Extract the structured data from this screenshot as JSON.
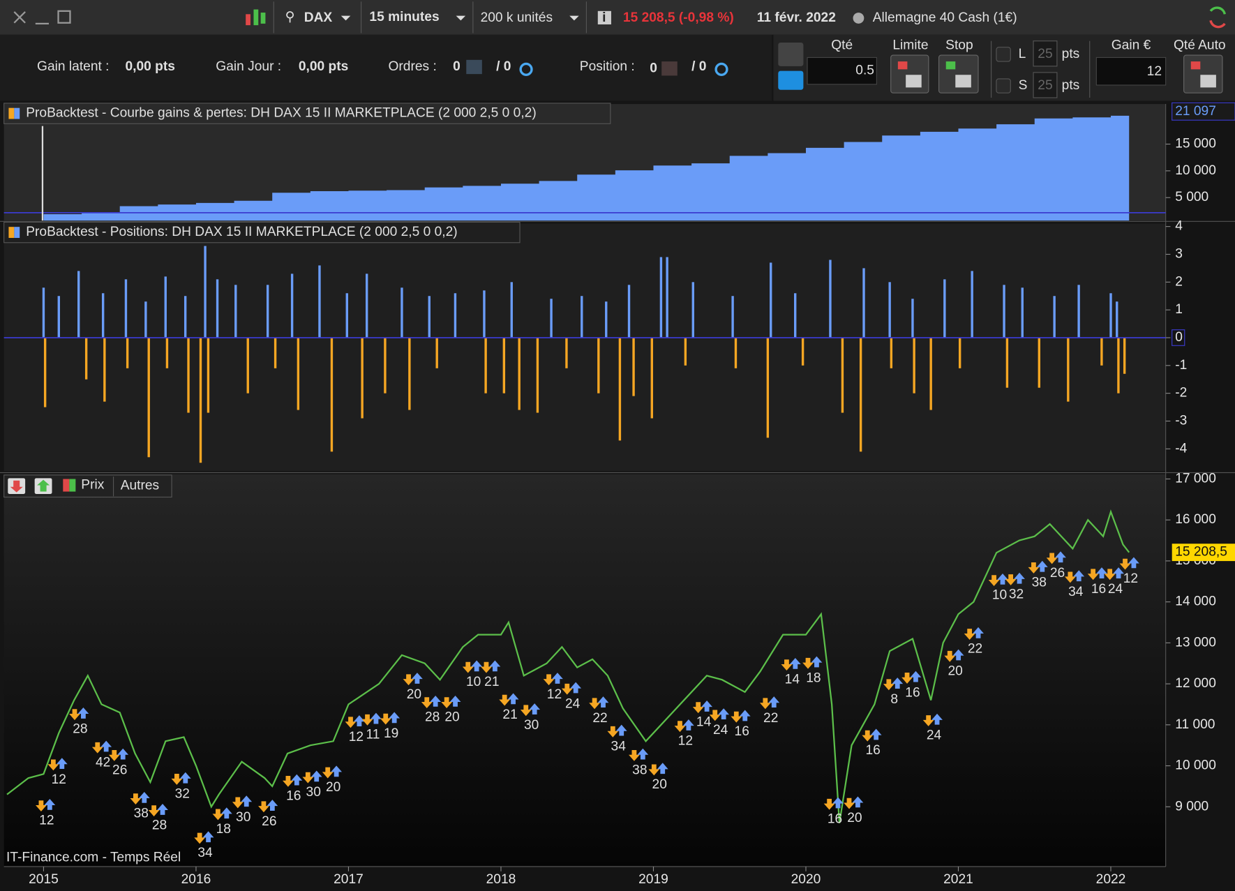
{
  "toolbar": {
    "instrument": "DAX",
    "timeframe": "15 minutes",
    "units": "200 k unités",
    "price": "15 208,5 (-0,98 %)",
    "date": "11 févr. 2022",
    "market": "Allemagne 40 Cash (1€)"
  },
  "status": {
    "latent_label": "Gain latent :",
    "latent": "0,00 pts",
    "day_label": "Gain Jour :",
    "day": "0,00 pts",
    "orders_label": "Ordres :",
    "orders": "0",
    "orders_pending": "/ 0",
    "position_label": "Position :",
    "position": "0",
    "position_pending": "/ 0"
  },
  "order_panel": {
    "qty_label": "Qté",
    "qty": "0.5",
    "limit": "Limite",
    "stop": "Stop",
    "long": "L",
    "long_pts": "25",
    "short": "S",
    "short_pts": "25",
    "unit": "pts",
    "gain_label": "Gain €",
    "gain": "12",
    "auto_qty": "Qté Auto"
  },
  "price_panel": {
    "tabs": [
      "Prix",
      "Autres"
    ]
  },
  "source": "IT-Finance.com - Temps Réel",
  "chart_data": [
    {
      "type": "area",
      "title": "ProBacktest - Courbe gains & pertes: DH DAX 15 II MARKETPLACE (2 000 2,5 0 0,2)",
      "color": "#6a9cf8",
      "x": [
        2015.0,
        2015.25,
        2015.5,
        2015.75,
        2016.0,
        2016.25,
        2016.5,
        2016.75,
        2017.0,
        2017.25,
        2017.5,
        2017.75,
        2018.0,
        2018.25,
        2018.5,
        2018.75,
        2019.0,
        2019.25,
        2019.5,
        2019.75,
        2020.0,
        2020.25,
        2020.5,
        2020.75,
        2021.0,
        2021.25,
        2021.5,
        2021.75,
        2022.0,
        2022.12
      ],
      "values": [
        1900,
        2100,
        3400,
        3700,
        4000,
        4400,
        5900,
        6200,
        6300,
        6400,
        6900,
        7200,
        7600,
        8100,
        9300,
        10100,
        11000,
        11400,
        12800,
        13300,
        14300,
        15400,
        16600,
        17300,
        17900,
        18700,
        19800,
        20000,
        20300,
        21097
      ],
      "xlim": [
        2014.74,
        2022.36
      ],
      "ylim": [
        700,
        22500
      ],
      "yticks": [
        {
          "value": 5000,
          "label": "5 000"
        },
        {
          "value": 10000,
          "label": "10 000"
        },
        {
          "value": 15000,
          "label": "15 000"
        }
      ],
      "current": {
        "value": 21097,
        "label": "21 097"
      }
    },
    {
      "type": "bar",
      "title": "ProBacktest - Positions: DH DAX 15 II MARKETPLACE (2 000 2,5 0 0,2)",
      "pos_color": "#6a9cf8",
      "neg_color": "#f5a623",
      "x": [
        2015.0,
        2015.1,
        2015.23,
        2015.39,
        2015.54,
        2015.67,
        2015.8,
        2015.93,
        2016.06,
        2016.14,
        2016.26,
        2016.47,
        2016.63,
        2016.81,
        2016.99,
        2017.12,
        2017.35,
        2017.53,
        2017.7,
        2017.89,
        2018.07,
        2018.33,
        2018.53,
        2018.69,
        2018.84,
        2019.05,
        2019.09,
        2019.26,
        2019.52,
        2019.77,
        2019.93,
        2020.16,
        2020.38,
        2020.55,
        2020.7,
        2020.91,
        2021.09,
        2021.3,
        2021.42,
        2021.63,
        2021.79,
        2022.0,
        2022.04,
        2015.01,
        2015.28,
        2015.4,
        2015.55,
        2015.69,
        2015.81,
        2015.95,
        2016.03,
        2016.08,
        2016.34,
        2016.52,
        2016.67,
        2016.89,
        2017.09,
        2017.24,
        2017.4,
        2017.58,
        2017.9,
        2018.02,
        2018.12,
        2018.24,
        2018.43,
        2018.64,
        2018.78,
        2018.87,
        2018.99,
        2019.21,
        2019.54,
        2019.75,
        2019.98,
        2020.24,
        2020.36,
        2020.56,
        2020.71,
        2020.82,
        2021.01,
        2021.32,
        2021.53,
        2021.72,
        2021.94,
        2022.05,
        2022.09
      ],
      "values": [
        1.8,
        1.5,
        2.4,
        1.6,
        2.1,
        1.3,
        2.2,
        1.5,
        3.3,
        2.1,
        1.9,
        1.9,
        2.3,
        2.6,
        1.6,
        2.3,
        1.8,
        1.5,
        1.6,
        1.7,
        2.0,
        1.4,
        1.5,
        1.3,
        1.9,
        2.9,
        2.9,
        2.0,
        1.5,
        2.7,
        1.6,
        2.8,
        2.5,
        2.0,
        1.4,
        2.1,
        2.4,
        1.9,
        1.8,
        1.5,
        1.9,
        1.6,
        1.3,
        -2.5,
        -1.5,
        -2.3,
        -1.1,
        -4.3,
        -1.1,
        -2.7,
        -4.5,
        -2.7,
        -2.0,
        -1.1,
        -2.6,
        -4.1,
        -2.9,
        -2.0,
        -2.6,
        -1.1,
        -2.0,
        -2.0,
        -2.6,
        -2.7,
        -1.1,
        -2.0,
        -3.7,
        -2.1,
        -2.9,
        -1.0,
        -1.1,
        -3.6,
        -1.0,
        -2.7,
        -4.1,
        -1.1,
        -2.0,
        -2.6,
        -1.1,
        -1.8,
        -1.8,
        -2.3,
        -1.0,
        -2.0,
        -1.3
      ],
      "xlim": [
        2014.74,
        2022.36
      ],
      "ylim": [
        -4.8,
        4.1
      ],
      "yticks": [
        -4,
        -3,
        -2,
        -1,
        0,
        1,
        2,
        3,
        4
      ]
    },
    {
      "type": "line",
      "color": "#5cbf4a",
      "x": [
        2014.76,
        2014.9,
        2015.0,
        2015.1,
        2015.2,
        2015.29,
        2015.38,
        2015.5,
        2015.6,
        2015.7,
        2015.8,
        2015.92,
        2016.0,
        2016.1,
        2016.15,
        2016.3,
        2016.45,
        2016.5,
        2016.6,
        2016.75,
        2016.9,
        2017.0,
        2017.2,
        2017.35,
        2017.5,
        2017.6,
        2017.75,
        2017.85,
        2018.0,
        2018.05,
        2018.15,
        2018.3,
        2018.4,
        2018.5,
        2018.6,
        2018.7,
        2018.8,
        2018.95,
        2019.0,
        2019.2,
        2019.35,
        2019.45,
        2019.6,
        2019.7,
        2019.85,
        2020.0,
        2020.1,
        2020.17,
        2020.22,
        2020.3,
        2020.45,
        2020.55,
        2020.7,
        2020.82,
        2020.9,
        2021.0,
        2021.1,
        2021.25,
        2021.4,
        2021.5,
        2021.6,
        2021.75,
        2021.85,
        2021.95,
        2022.0,
        2022.08,
        2022.12
      ],
      "values": [
        9300,
        9700,
        9800,
        10800,
        11600,
        12200,
        11500,
        11300,
        10300,
        9600,
        10600,
        10700,
        10000,
        9000,
        9300,
        10100,
        9700,
        9500,
        10300,
        10500,
        10600,
        11500,
        12000,
        12700,
        12500,
        12100,
        12900,
        13200,
        13200,
        13500,
        12200,
        12500,
        12900,
        12400,
        12600,
        12200,
        11400,
        10600,
        10800,
        11600,
        12200,
        12100,
        11800,
        12300,
        13200,
        13200,
        13700,
        11500,
        8600,
        10500,
        11500,
        12800,
        13100,
        11600,
        13000,
        13700,
        14000,
        15200,
        15500,
        15600,
        15900,
        15300,
        16000,
        15600,
        16200,
        15400,
        15208.5
      ],
      "xlim": [
        2014.74,
        2022.36
      ],
      "ylim": [
        7540,
        17115
      ],
      "yticks": [
        {
          "value": 9000,
          "label": "9 000"
        },
        {
          "value": 10000,
          "label": "10 000"
        },
        {
          "value": 11000,
          "label": "11 000"
        },
        {
          "value": 12000,
          "label": "12 000"
        },
        {
          "value": 13000,
          "label": "13 000"
        },
        {
          "value": 14000,
          "label": "14 000"
        },
        {
          "value": 15000,
          "label": "15 000"
        },
        {
          "value": 16000,
          "label": "16 000"
        },
        {
          "value": 17000,
          "label": "17 000"
        }
      ],
      "xticks": [
        2015,
        2016,
        2017,
        2018,
        2019,
        2020,
        2021,
        2022
      ],
      "current": {
        "value": 15208.5,
        "label": "15 208,5"
      },
      "trades": [
        {
          "x": 2015.02,
          "y": 9000,
          "value": 12
        },
        {
          "x": 2015.1,
          "y": 10000,
          "value": 12
        },
        {
          "x": 2015.24,
          "y": 11230,
          "value": 28
        },
        {
          "x": 2015.39,
          "y": 10420,
          "value": 42
        },
        {
          "x": 2015.5,
          "y": 10230,
          "value": 26
        },
        {
          "x": 2015.64,
          "y": 9170,
          "value": 38
        },
        {
          "x": 2015.76,
          "y": 8880,
          "value": 28
        },
        {
          "x": 2015.91,
          "y": 9650,
          "value": 32
        },
        {
          "x": 2016.06,
          "y": 8210,
          "value": 34
        },
        {
          "x": 2016.18,
          "y": 8790,
          "value": 18
        },
        {
          "x": 2016.31,
          "y": 9080,
          "value": 30
        },
        {
          "x": 2016.48,
          "y": 8980,
          "value": 26
        },
        {
          "x": 2016.64,
          "y": 9600,
          "value": 16
        },
        {
          "x": 2016.77,
          "y": 9690,
          "value": 30
        },
        {
          "x": 2016.9,
          "y": 9810,
          "value": 20
        },
        {
          "x": 2017.05,
          "y": 11040,
          "value": 12
        },
        {
          "x": 2017.16,
          "y": 11100,
          "value": 11
        },
        {
          "x": 2017.28,
          "y": 11120,
          "value": 19
        },
        {
          "x": 2017.43,
          "y": 12080,
          "value": 20
        },
        {
          "x": 2017.55,
          "y": 11520,
          "value": 28
        },
        {
          "x": 2017.68,
          "y": 11520,
          "value": 20
        },
        {
          "x": 2017.82,
          "y": 12380,
          "value": 10
        },
        {
          "x": 2017.94,
          "y": 12380,
          "value": 21
        },
        {
          "x": 2018.06,
          "y": 11580,
          "value": 21
        },
        {
          "x": 2018.2,
          "y": 11330,
          "value": 30
        },
        {
          "x": 2018.35,
          "y": 12080,
          "value": 12
        },
        {
          "x": 2018.47,
          "y": 11850,
          "value": 24
        },
        {
          "x": 2018.65,
          "y": 11500,
          "value": 22
        },
        {
          "x": 2018.77,
          "y": 10810,
          "value": 34
        },
        {
          "x": 2018.91,
          "y": 10230,
          "value": 38
        },
        {
          "x": 2019.04,
          "y": 9880,
          "value": 20
        },
        {
          "x": 2019.21,
          "y": 10940,
          "value": 12
        },
        {
          "x": 2019.33,
          "y": 11400,
          "value": 14
        },
        {
          "x": 2019.44,
          "y": 11210,
          "value": 24
        },
        {
          "x": 2019.58,
          "y": 11170,
          "value": 16
        },
        {
          "x": 2019.77,
          "y": 11500,
          "value": 22
        },
        {
          "x": 2019.91,
          "y": 12440,
          "value": 14
        },
        {
          "x": 2020.05,
          "y": 12480,
          "value": 18
        },
        {
          "x": 2020.19,
          "y": 9040,
          "value": 16
        },
        {
          "x": 2020.32,
          "y": 9060,
          "value": 20
        },
        {
          "x": 2020.44,
          "y": 10710,
          "value": 16
        },
        {
          "x": 2020.58,
          "y": 11960,
          "value": 8
        },
        {
          "x": 2020.7,
          "y": 12120,
          "value": 16
        },
        {
          "x": 2020.84,
          "y": 11080,
          "value": 24
        },
        {
          "x": 2020.98,
          "y": 12650,
          "value": 20
        },
        {
          "x": 2021.11,
          "y": 13190,
          "value": 22
        },
        {
          "x": 2021.27,
          "y": 14500,
          "value": 10
        },
        {
          "x": 2021.38,
          "y": 14520,
          "value": 32
        },
        {
          "x": 2021.53,
          "y": 14810,
          "value": 38
        },
        {
          "x": 2021.65,
          "y": 15040,
          "value": 26
        },
        {
          "x": 2021.77,
          "y": 14580,
          "value": 34
        },
        {
          "x": 2021.92,
          "y": 14650,
          "value": 16
        },
        {
          "x": 2022.03,
          "y": 14650,
          "value": 24
        },
        {
          "x": 2022.13,
          "y": 14900,
          "value": 12
        }
      ]
    }
  ]
}
